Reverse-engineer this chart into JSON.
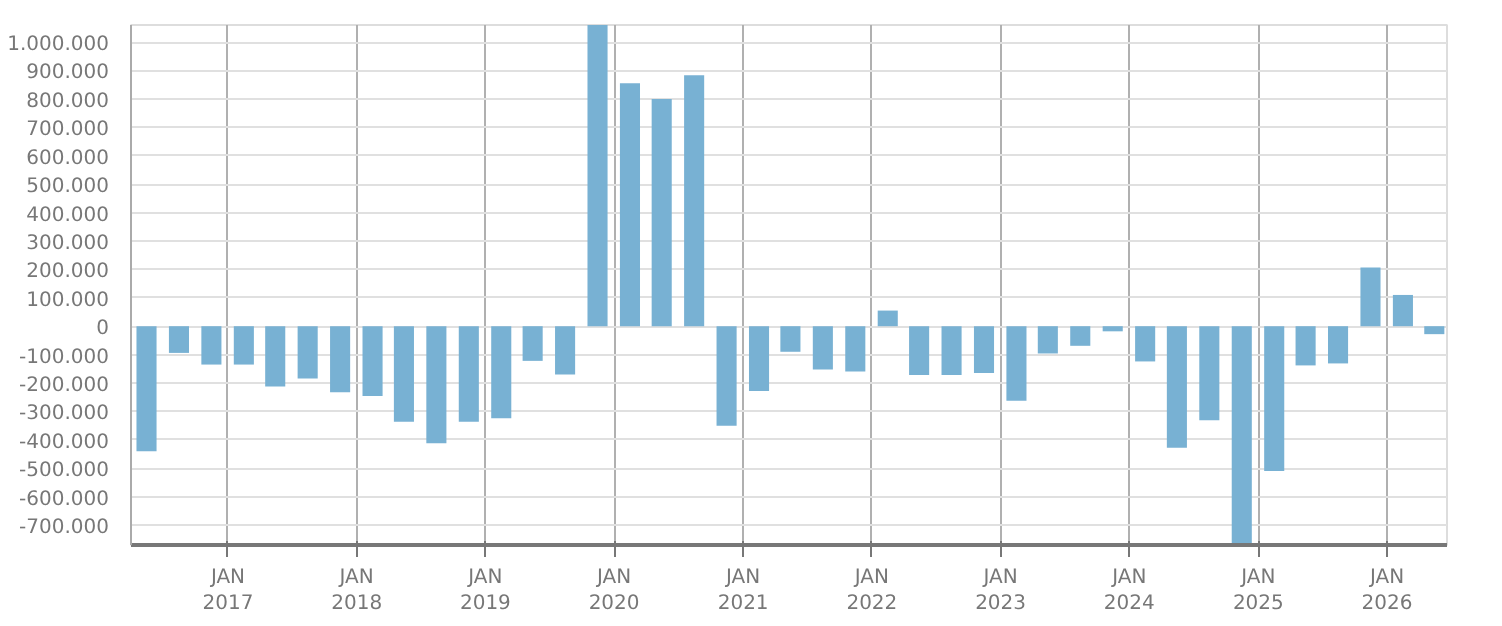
{
  "chart_data": {
    "type": "bar",
    "x": [
      "2016-05-15",
      "2016-08-15",
      "2016-11-15",
      "2017-02-15",
      "2017-05-15",
      "2017-08-15",
      "2017-11-15",
      "2018-02-15",
      "2018-05-15",
      "2018-08-15",
      "2018-11-15",
      "2019-02-15",
      "2019-05-15",
      "2019-08-15",
      "2019-11-15",
      "2020-02-15",
      "2020-05-15",
      "2020-08-15",
      "2020-11-15",
      "2021-02-15",
      "2021-05-15",
      "2021-08-15",
      "2021-11-15",
      "2022-02-15",
      "2022-05-15",
      "2022-08-15",
      "2022-11-15",
      "2023-02-15",
      "2023-05-15",
      "2023-08-15",
      "2023-11-15",
      "2024-02-15",
      "2024-05-15",
      "2024-08-15",
      "2024-11-15",
      "2025-02-15",
      "2025-05-15",
      "2025-08-15",
      "2025-11-15",
      "2026-02-15",
      "2026-05-15"
    ],
    "values": [
      -440000,
      -94000,
      -135000,
      -135000,
      -212000,
      -184000,
      -232000,
      -246000,
      -336000,
      -412000,
      -336000,
      -324000,
      -122000,
      -170000,
      1060000,
      855000,
      800000,
      883000,
      -350000,
      -228000,
      -90000,
      -152000,
      -159000,
      55000,
      -172000,
      -172000,
      -165000,
      -262000,
      -96000,
      -69000,
      -18000,
      -124000,
      -428000,
      -331000,
      -770000,
      -510000,
      -138000,
      -131000,
      207000,
      110000,
      -28000
    ],
    "color": "#78b1d3",
    "xlim": [
      "2016-04-01",
      "2026-06-20"
    ],
    "xticks": [
      {
        "value": "2017-01-01",
        "label": "JAN\n2017"
      },
      {
        "value": "2018-01-01",
        "label": "JAN\n2018"
      },
      {
        "value": "2019-01-01",
        "label": "JAN\n2019"
      },
      {
        "value": "2020-01-01",
        "label": "JAN\n2020"
      },
      {
        "value": "2021-01-01",
        "label": "JAN\n2021"
      },
      {
        "value": "2022-01-01",
        "label": "JAN\n2022"
      },
      {
        "value": "2023-01-01",
        "label": "JAN\n2023"
      },
      {
        "value": "2024-01-01",
        "label": "JAN\n2024"
      },
      {
        "value": "2025-01-01",
        "label": "JAN\n2025"
      },
      {
        "value": "2026-01-01",
        "label": "JAN\n2026"
      }
    ],
    "ylim": [
      -770000,
      1060000
    ],
    "yticks": [
      {
        "value": -700000,
        "label": "-700.000"
      },
      {
        "value": -600000,
        "label": "-600.000"
      },
      {
        "value": -500000,
        "label": "-500.000"
      },
      {
        "value": -400000,
        "label": "-400.000"
      },
      {
        "value": -300000,
        "label": "-300.000"
      },
      {
        "value": -200000,
        "label": "-200.000"
      },
      {
        "value": -100000,
        "label": "-100.000"
      },
      0,
      {
        "value": 100000,
        "label": "100.000"
      },
      {
        "value": 200000,
        "label": "200.000"
      },
      {
        "value": 300000,
        "label": "300.000"
      },
      {
        "value": 400000,
        "label": "400.000"
      },
      {
        "value": 500000,
        "label": "500.000"
      },
      {
        "value": 600000,
        "label": "600.000"
      },
      {
        "value": 700000,
        "label": "700.000"
      },
      {
        "value": 800000,
        "label": "800.000"
      },
      {
        "value": 900000,
        "label": "900.000"
      },
      {
        "value": 1000000,
        "label": "1.000.000"
      }
    ],
    "grid": true
  }
}
